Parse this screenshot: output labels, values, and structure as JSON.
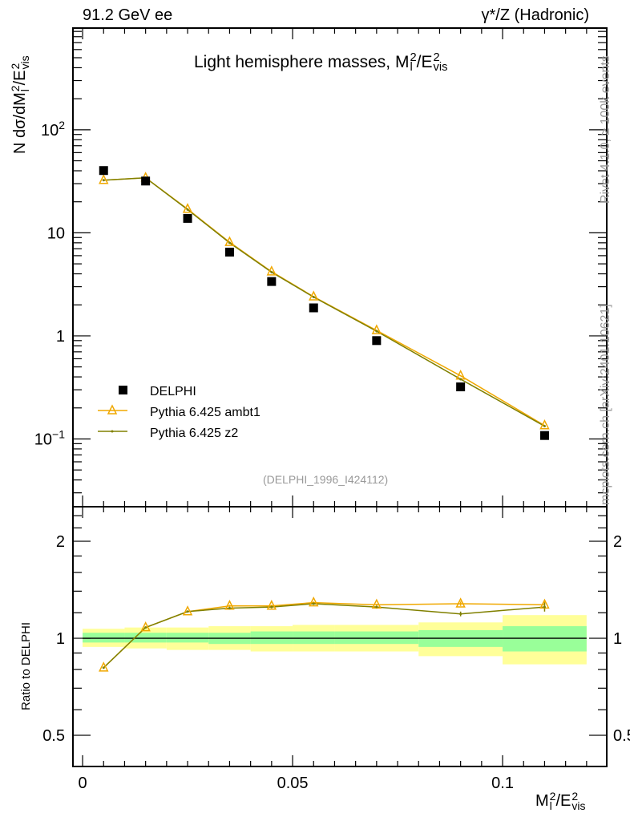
{
  "header": {
    "left": "91.2 GeV ee",
    "right": "γ*/Z (Hadronic)"
  },
  "side_notes": {
    "rivet": "Rivet 4.1.0, ≥ 100k events",
    "mcplots": "mcplots.cern.ch [arXiv:2401.10621]"
  },
  "colors": {
    "data": "#000000",
    "ambt1": "#f0a800",
    "z2": "#808000",
    "band_inner": "#99ff99",
    "band_outer": "#ffff99"
  },
  "chart_data": [
    {
      "type": "line",
      "title": {
        "prefix": "Light hemisphere masses, M",
        "sub1": "l",
        "sup1": "2",
        "mid": "/E",
        "sub2": "vis",
        "sup2": "2"
      },
      "ylabel": {
        "prefix": "N  dσ/dM",
        "sub1": "l",
        "sup1": "2",
        "mid": "/E",
        "sub2": "vis",
        "sup2": "2"
      },
      "yscale": "log",
      "ylim": [
        0.022,
        970
      ],
      "xlim": [
        -0.0023,
        0.1248
      ],
      "yticks": [
        {
          "v": 100,
          "base": "10",
          "exp": "2"
        },
        {
          "v": 10,
          "base": "10",
          "exp": ""
        },
        {
          "v": 1,
          "base": "1",
          "exp": ""
        },
        {
          "v": 0.1,
          "base": "10",
          "exp": "−1"
        }
      ],
      "annotation": "(DELPHI_1996_I424112)",
      "legend": {
        "placement": "bottom-left",
        "entries": [
          "DELPHI",
          "Pythia 6.425 ambt1",
          "Pythia 6.425 z2"
        ]
      },
      "x": [
        0.005,
        0.015,
        0.025,
        0.035,
        0.045,
        0.055,
        0.07,
        0.09,
        0.11
      ],
      "series": [
        {
          "name": "DELPHI",
          "values": [
            40.2,
            31.8,
            13.8,
            6.5,
            3.37,
            1.87,
            0.9,
            0.32,
            0.108
          ]
        },
        {
          "name": "Pythia 6.425 ambt1",
          "values": [
            32.4,
            34.2,
            17.0,
            8.1,
            4.2,
            2.4,
            1.13,
            0.41,
            0.135
          ]
        },
        {
          "name": "Pythia 6.425 z2",
          "values": [
            32.4,
            34.2,
            16.8,
            8.0,
            4.15,
            2.38,
            1.11,
            0.38,
            0.133
          ]
        }
      ]
    },
    {
      "type": "line",
      "ylabel": "Ratio to DELPHI",
      "xlabel": {
        "prefix": "M",
        "sub1": "l",
        "sup1": "2",
        "mid": "/E",
        "sub2": "vis",
        "sup2": "2"
      },
      "yscale": "log",
      "ylim": [
        0.4,
        2.56
      ],
      "xlim": [
        -0.0023,
        0.1248
      ],
      "yticks": [
        {
          "v": 2,
          "label": "2"
        },
        {
          "v": 1,
          "label": "1"
        },
        {
          "v": 0.5,
          "label": "0.5"
        }
      ],
      "xticks": [
        {
          "v": 0,
          "label": "0"
        },
        {
          "v": 0.05,
          "label": "0.05"
        },
        {
          "v": 0.1,
          "label": "0.1"
        }
      ],
      "bins": [
        [
          0,
          0.01
        ],
        [
          0.01,
          0.02
        ],
        [
          0.02,
          0.03
        ],
        [
          0.03,
          0.04
        ],
        [
          0.04,
          0.05
        ],
        [
          0.05,
          0.06
        ],
        [
          0.06,
          0.08
        ],
        [
          0.08,
          0.1
        ],
        [
          0.1,
          0.12
        ]
      ],
      "band_inner": [
        [
          0.97,
          1.04
        ],
        [
          0.97,
          1.04
        ],
        [
          0.97,
          1.04
        ],
        [
          0.96,
          1.04
        ],
        [
          0.96,
          1.05
        ],
        [
          0.96,
          1.05
        ],
        [
          0.96,
          1.05
        ],
        [
          0.94,
          1.06
        ],
        [
          0.91,
          1.09
        ]
      ],
      "band_outer": [
        [
          0.94,
          1.07
        ],
        [
          0.93,
          1.08
        ],
        [
          0.92,
          1.08
        ],
        [
          0.92,
          1.09
        ],
        [
          0.91,
          1.09
        ],
        [
          0.91,
          1.1
        ],
        [
          0.91,
          1.1
        ],
        [
          0.88,
          1.12
        ],
        [
          0.83,
          1.18
        ]
      ],
      "x": [
        0.005,
        0.015,
        0.025,
        0.035,
        0.045,
        0.055,
        0.07,
        0.09,
        0.11
      ],
      "series": [
        {
          "name": "Pythia 6.425 ambt1",
          "values": [
            0.81,
            1.08,
            1.21,
            1.26,
            1.26,
            1.29,
            1.27,
            1.28,
            1.27
          ],
          "errors": [
            0,
            0,
            0,
            0.01,
            0.01,
            0.01,
            0.01,
            0.02,
            0.04
          ]
        },
        {
          "name": "Pythia 6.425 z2",
          "values": [
            0.81,
            1.08,
            1.21,
            1.24,
            1.25,
            1.28,
            1.25,
            1.19,
            1.25
          ],
          "errors": [
            0,
            0,
            0,
            0.01,
            0.01,
            0.01,
            0.01,
            0.02,
            0.04
          ]
        }
      ]
    }
  ]
}
